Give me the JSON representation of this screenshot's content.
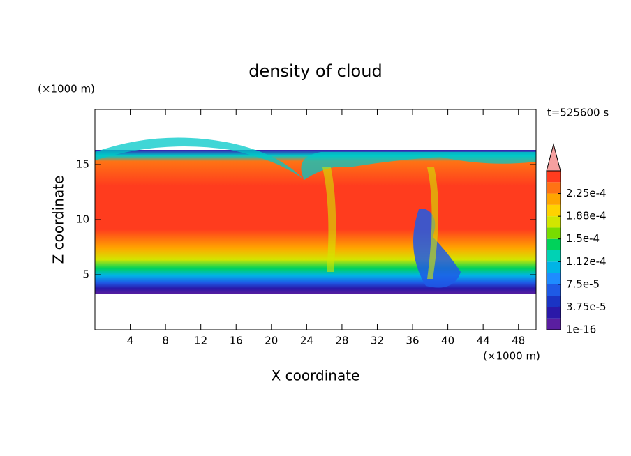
{
  "chart_data": {
    "type": "contour",
    "title": "density of cloud",
    "x_label": "X coordinate",
    "y_label": "Z coordinate",
    "x_unit": "(×1000 m)",
    "y_unit": "(×1000 m)",
    "time_label": "t=525600 s",
    "xlim": [
      0,
      50
    ],
    "ylim": [
      0,
      20
    ],
    "xticks": [
      4,
      8,
      12,
      16,
      20,
      24,
      28,
      32,
      36,
      40,
      44,
      48
    ],
    "yticks": [
      5,
      10,
      15
    ],
    "colorbar": {
      "clim": [
        1e-16,
        0.0002625
      ],
      "colors": [
        "#5a1ea0",
        "#2a18a8",
        "#1a34c4",
        "#1e5ae6",
        "#1e8cff",
        "#00b4e6",
        "#00d2b4",
        "#00d25a",
        "#78dc00",
        "#d2e600",
        "#ffd200",
        "#ffa500",
        "#ff7314",
        "#ff3c1e"
      ],
      "extend_color": "#f5a0a0",
      "ticks": [
        {
          "value": 1e-16,
          "label": "1e-16"
        },
        {
          "value": 3.75e-05,
          "label": "3.75e-5"
        },
        {
          "value": 7.5e-05,
          "label": "7.5e-5"
        },
        {
          "value": 0.0001125,
          "label": "1.12e-4"
        },
        {
          "value": 0.00015,
          "label": "1.5e-4"
        },
        {
          "value": 0.0001875,
          "label": "1.88e-4"
        },
        {
          "value": 0.000225,
          "label": "2.25e-4"
        }
      ]
    }
  }
}
